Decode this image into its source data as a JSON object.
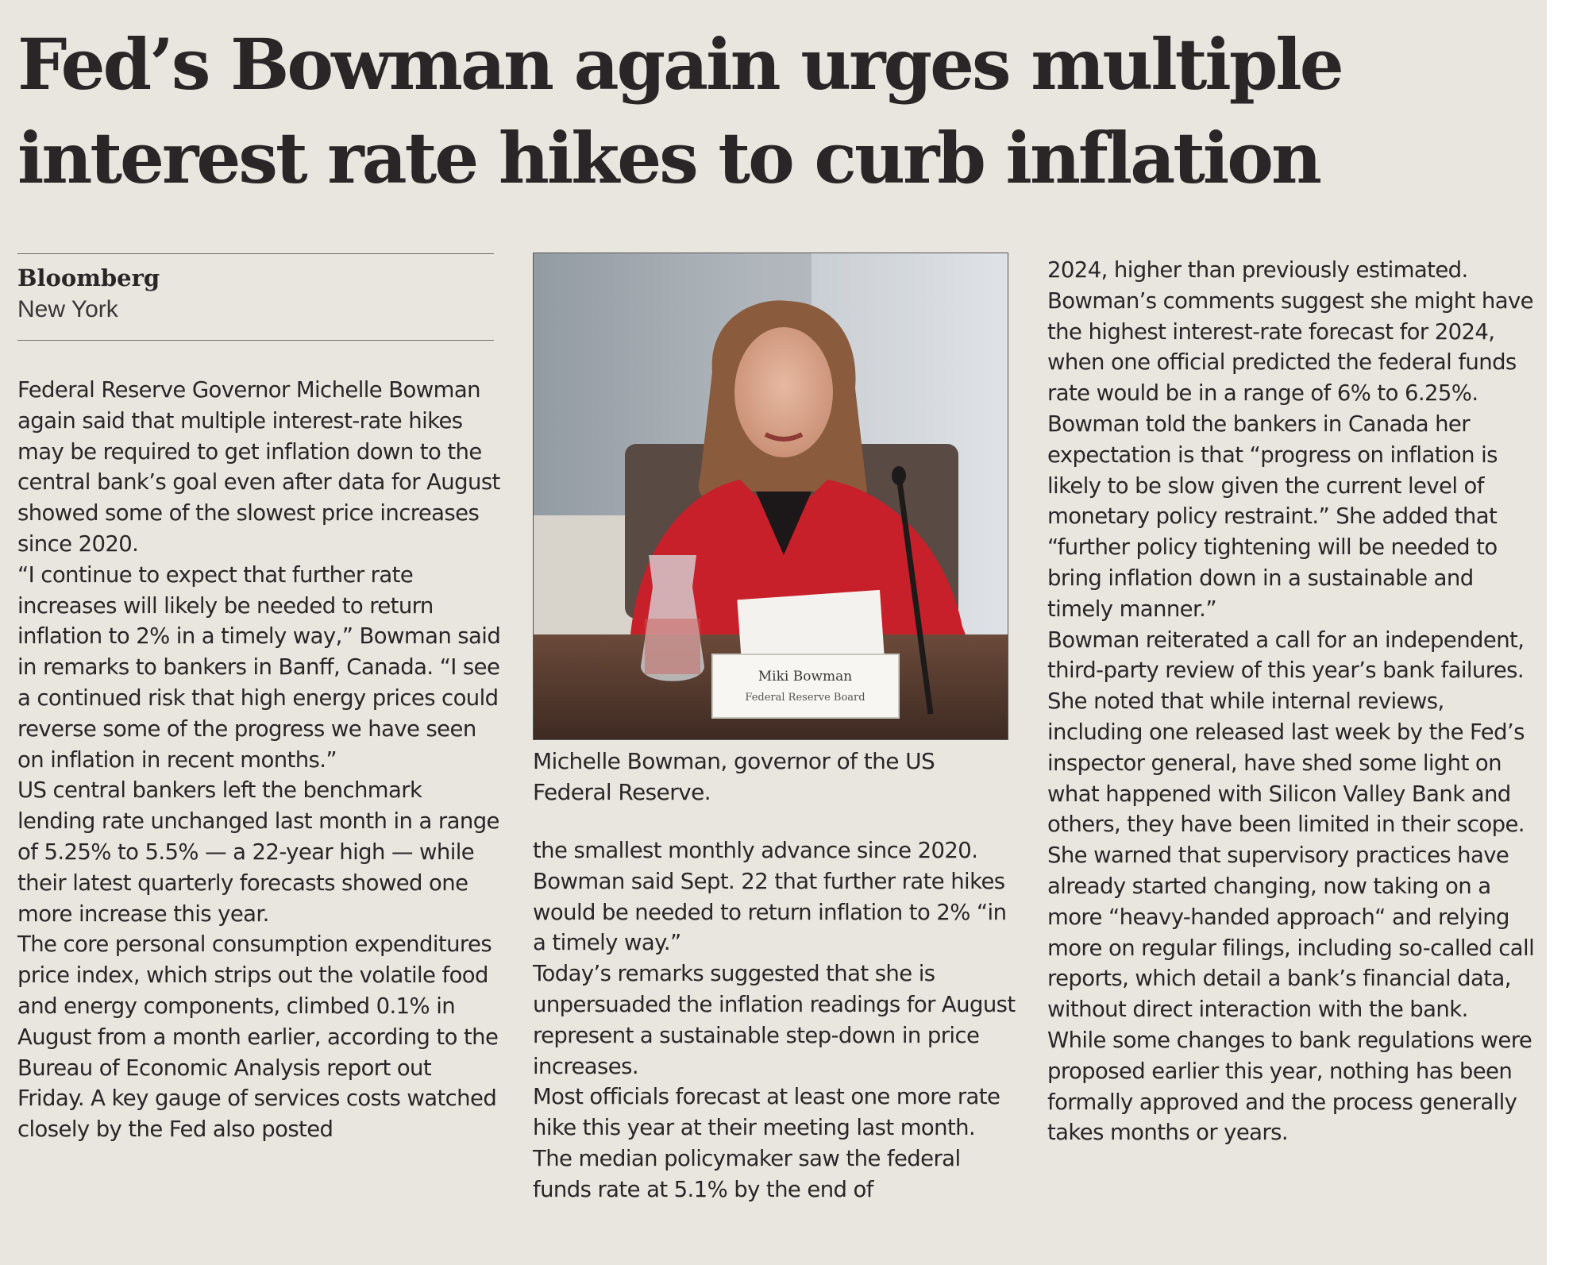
{
  "article": {
    "headline_line1": "Fed’s Bowman again urges multiple",
    "headline_line2": "interest rate hikes to curb inflation",
    "source": "Bloomberg",
    "dateline": "New York",
    "column1": [
      "Federal Reserve Governor Michelle Bowman again said that multiple interest-rate hikes may be required to get inflation down to the central bank’s goal even after data for August showed some of the slowest price increases since 2020.",
      "“I continue to expect that further rate increases will likely be needed to return inflation to 2% in a timely way,” Bowman said in remarks to bankers in Banff, Canada. “I see a continued risk that high energy prices could reverse some of the progress we have seen on inflation in recent months.”",
      "US central bankers left the benchmark lending rate unchanged last month in a range of 5.25% to 5.5% — a 22-year high — while their latest quarterly forecasts showed one more increase this year.",
      "The core personal consumption expenditures price index, which strips out the volatile food and energy components, climbed 0.1% in August from a month earlier, according to the Bureau of Economic Analysis report out Friday. A key gauge of services costs watched closely by the Fed also posted"
    ],
    "column2": [
      "the smallest monthly advance since 2020.",
      "Bowman said Sept. 22 that further rate hikes would be needed to return inflation to 2% “in a timely way.”",
      "Today’s remarks suggested that she is unpersuaded the inflation readings for August represent a sustainable step-down in price increases.",
      "Most officials forecast at least one more rate hike this year at their meeting last month. The median policymaker saw the federal funds rate at 5.1% by the end of"
    ],
    "column3": [
      "2024, higher than previously estimated. Bowman’s comments suggest she might have the highest interest-rate forecast for 2024, when one official predicted the federal funds rate would be in a range of 6% to 6.25%.",
      "Bowman told the bankers in Canada her expectation is that “progress on inflation is likely to be slow given the current level of monetary policy restraint.” She added that “further policy tightening will be needed to bring inflation down in a sustainable and timely manner.”",
      "Bowman reiterated a call for an independent, third-party review of this year’s bank failures. She noted that while internal reviews, including one released last week by the Fed’s inspector general, have shed some light on what happened with Silicon Valley Bank and others, they have been limited in their scope.",
      "She warned that supervisory practices have already started changing, now taking on a more “heavy-handed approach“ and relying more on regular filings, including so-called call reports, which detail a bank’s financial data, without direct interaction with the bank.",
      "While some changes to bank regulations were proposed earlier this year, nothing has been formally approved and the process generally takes months or years."
    ]
  },
  "photo": {
    "caption": "Michelle Bowman, governor of the US Federal Reserve.",
    "nameplate_name": "Miki Bowman",
    "nameplate_title": "Federal Reserve Board"
  },
  "colors": {
    "page_background": "#e9e6df",
    "text": "#2a2627",
    "jacket": "#c8202a"
  }
}
